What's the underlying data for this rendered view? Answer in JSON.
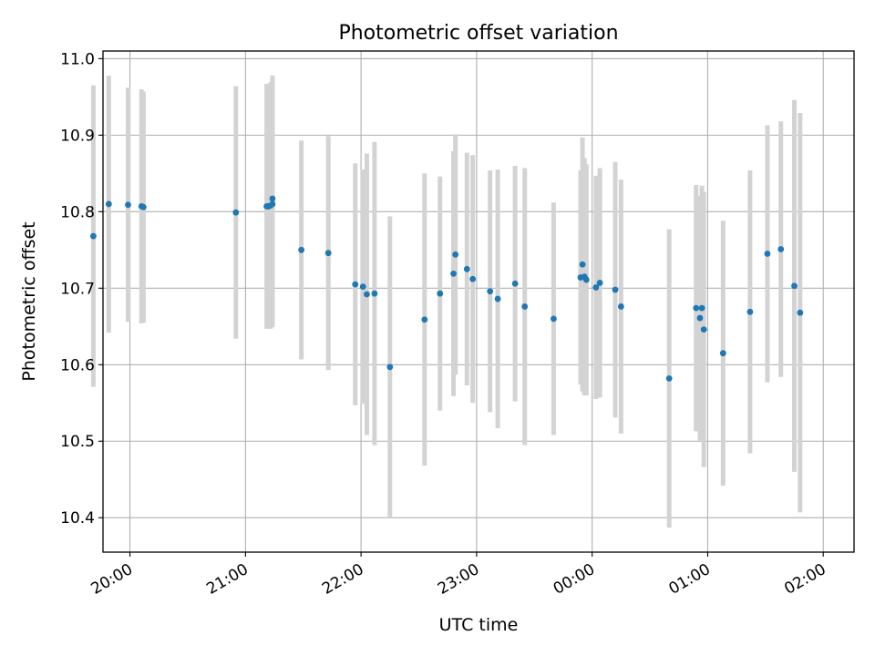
{
  "chart_data": {
    "type": "scatter",
    "title": "Photometric offset variation",
    "xlabel": "UTC time",
    "ylabel": "Photometric offset",
    "xlim": [
      "19:46",
      "02:16"
    ],
    "ylim": [
      10.355,
      11.01
    ],
    "x_ticks": [
      "20:00",
      "21:00",
      "22:00",
      "23:00",
      "00:00",
      "01:00",
      "02:00"
    ],
    "y_ticks": [
      "10.4",
      "10.5",
      "10.6",
      "10.7",
      "10.8",
      "10.9",
      "11.0"
    ],
    "grid": true,
    "legend": "none",
    "colors": {
      "points": "#1f77b4",
      "errorbars": "#d3d3d3",
      "grid": "#b0b0b0",
      "axes": "#000000"
    },
    "series": [
      {
        "x": [
          "19:41",
          "19:49",
          "19:59",
          "20:06",
          "20:07",
          "20:55",
          "21:11",
          "21:12",
          "21:13",
          "21:14",
          "21:14",
          "21:29",
          "21:43",
          "21:57",
          "22:01",
          "22:03",
          "22:07",
          "22:15",
          "22:33",
          "22:41",
          "22:48",
          "22:49",
          "22:55",
          "22:58",
          "23:07",
          "23:11",
          "23:20",
          "23:25",
          "23:40",
          "23:54",
          "23:55",
          "23:56",
          "23:57",
          "24:02",
          "24:04",
          "24:12",
          "24:15",
          "24:40",
          "24:54",
          "24:56",
          "24:57",
          "24:58",
          "25:08",
          "25:22",
          "25:31",
          "25:38",
          "25:45",
          "25:48"
        ],
        "y": [
          10.768,
          10.81,
          10.809,
          10.807,
          10.806,
          10.799,
          10.807,
          10.807,
          10.808,
          10.817,
          10.81,
          10.75,
          10.746,
          10.705,
          10.702,
          10.692,
          10.693,
          10.597,
          10.659,
          10.693,
          10.719,
          10.744,
          10.725,
          10.712,
          10.696,
          10.686,
          10.706,
          10.676,
          10.66,
          10.714,
          10.731,
          10.715,
          10.711,
          10.701,
          10.707,
          10.698,
          10.676,
          10.582,
          10.674,
          10.661,
          10.674,
          10.646,
          10.615,
          10.669,
          10.745,
          10.751,
          10.703,
          10.668
        ],
        "yerr": [
          0.197,
          0.168,
          0.153,
          0.153,
          0.151,
          0.165,
          0.16,
          0.16,
          0.161,
          0.161,
          0.161,
          0.143,
          0.153,
          0.158,
          0.153,
          0.184,
          0.198,
          0.197,
          0.191,
          0.153,
          0.16,
          0.157,
          0.152,
          0.162,
          0.158,
          0.169,
          0.154,
          0.181,
          0.152,
          0.14,
          0.166,
          0.155,
          0.151,
          0.146,
          0.15,
          0.167,
          0.166,
          0.195,
          0.161,
          0.16,
          0.16,
          0.18,
          0.173,
          0.185,
          0.168,
          0.167,
          0.243,
          0.261
        ]
      }
    ]
  }
}
